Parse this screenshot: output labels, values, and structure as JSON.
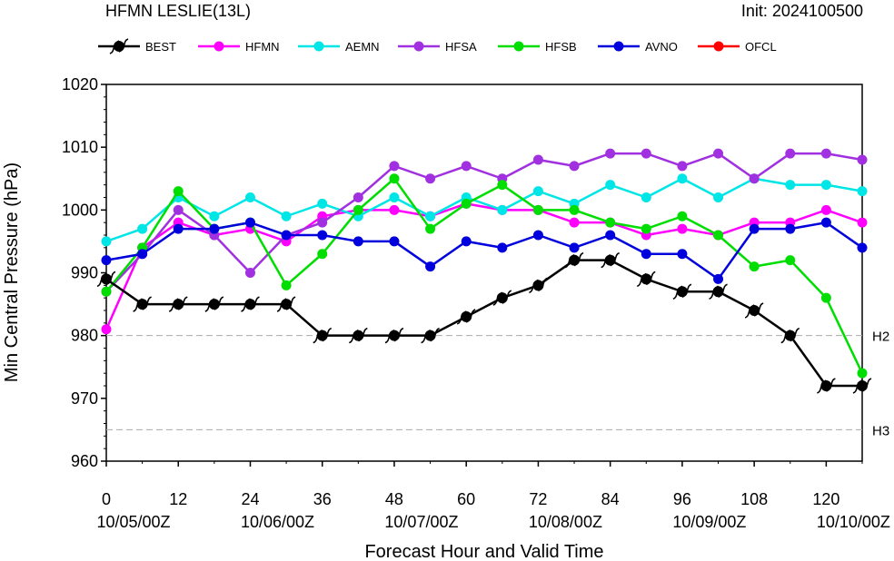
{
  "chart_data": {
    "type": "line",
    "title_left": "HFMN LESLIE(13L)",
    "title_right": "Init: 2024100500",
    "xlabel": "Forecast Hour and Valid Time",
    "ylabel": "Min Central Pressure (hPa)",
    "xlim": [
      0,
      126
    ],
    "ylim": [
      960,
      1020
    ],
    "x_ticks": [
      {
        "value": 0,
        "label": "0",
        "date": "10/05/00Z"
      },
      {
        "value": 12,
        "label": "12",
        "date": ""
      },
      {
        "value": 24,
        "label": "24",
        "date": "10/06/00Z"
      },
      {
        "value": 36,
        "label": "36",
        "date": ""
      },
      {
        "value": 48,
        "label": "48",
        "date": "10/07/00Z"
      },
      {
        "value": 60,
        "label": "60",
        "date": ""
      },
      {
        "value": 72,
        "label": "72",
        "date": "10/08/00Z"
      },
      {
        "value": 84,
        "label": "84",
        "date": ""
      },
      {
        "value": 96,
        "label": "96",
        "date": "10/09/00Z"
      },
      {
        "value": 108,
        "label": "108",
        "date": ""
      },
      {
        "value": 120,
        "label": "120",
        "date": "10/10/00Z"
      }
    ],
    "y_ticks": [
      960,
      970,
      980,
      990,
      1000,
      1010,
      1020
    ],
    "reference_lines": [
      {
        "label": "H2",
        "value": 980
      },
      {
        "label": "H3",
        "value": 965
      }
    ],
    "series": [
      {
        "name": "HFMN",
        "color": "#ff00ff",
        "x": [
          0,
          6,
          12,
          18,
          24,
          30,
          36,
          42,
          48,
          54,
          60,
          66,
          72,
          78,
          84,
          90,
          96,
          102,
          108,
          114,
          120,
          126
        ],
        "values": [
          981,
          994,
          998,
          996,
          997,
          995,
          999,
          1000,
          1000,
          999,
          1001,
          1000,
          1000,
          998,
          998,
          996,
          997,
          996,
          998,
          998,
          1000,
          998
        ]
      },
      {
        "name": "AEMN",
        "color": "#00e5e5",
        "x": [
          0,
          6,
          12,
          18,
          24,
          30,
          36,
          42,
          48,
          54,
          60,
          66,
          72,
          78,
          84,
          90,
          96,
          102,
          108,
          114,
          120,
          126
        ],
        "values": [
          995,
          997,
          1002,
          999,
          1002,
          999,
          1001,
          999,
          1002,
          999,
          1002,
          1000,
          1003,
          1001,
          1004,
          1002,
          1005,
          1002,
          1005,
          1004,
          1004,
          1003
        ]
      },
      {
        "name": "HFSA",
        "color": "#a030e0",
        "x": [
          0,
          6,
          12,
          18,
          24,
          30,
          36,
          42,
          48,
          54,
          60,
          66,
          72,
          78,
          84,
          90,
          96,
          102,
          108,
          114,
          120,
          126
        ],
        "values": [
          987,
          993,
          1000,
          996,
          990,
          996,
          998,
          1002,
          1007,
          1005,
          1007,
          1005,
          1008,
          1007,
          1009,
          1009,
          1007,
          1009,
          1005,
          1009,
          1009,
          1008
        ]
      },
      {
        "name": "HFSB",
        "color": "#00dd00",
        "x": [
          0,
          6,
          12,
          18,
          24,
          30,
          36,
          42,
          48,
          54,
          60,
          66,
          72,
          78,
          84,
          90,
          96,
          102,
          108,
          114,
          120,
          126
        ],
        "values": [
          987,
          994,
          1003,
          997,
          998,
          988,
          993,
          1000,
          1005,
          997,
          1001,
          1004,
          1000,
          1000,
          998,
          997,
          999,
          996,
          991,
          992,
          986,
          974
        ]
      },
      {
        "name": "AVNO",
        "color": "#0000dd",
        "x": [
          0,
          6,
          12,
          18,
          24,
          30,
          36,
          42,
          48,
          54,
          60,
          66,
          72,
          78,
          84,
          90,
          96,
          102,
          108,
          114,
          120,
          126
        ],
        "values": [
          992,
          993,
          997,
          997,
          998,
          996,
          996,
          995,
          995,
          991,
          995,
          994,
          996,
          994,
          996,
          993,
          993,
          989,
          997,
          997,
          998,
          994
        ]
      },
      {
        "name": "BEST",
        "color": "#000000",
        "marker": "hurricane",
        "x": [
          0,
          6,
          12,
          18,
          24,
          30,
          36,
          42,
          48,
          54,
          60,
          66,
          72,
          78,
          84,
          90,
          96,
          102,
          108,
          114,
          120,
          126
        ],
        "values": [
          989,
          985,
          985,
          985,
          985,
          985,
          980,
          980,
          980,
          980,
          983,
          986,
          988,
          992,
          992,
          989,
          987,
          987,
          984,
          980,
          972,
          972
        ]
      }
    ],
    "legend": [
      {
        "name": "BEST",
        "color": "#000000",
        "marker": "hurricane"
      },
      {
        "name": "HFMN",
        "color": "#ff00ff",
        "marker": "circle"
      },
      {
        "name": "AEMN",
        "color": "#00e5e5",
        "marker": "circle"
      },
      {
        "name": "HFSA",
        "color": "#a030e0",
        "marker": "circle"
      },
      {
        "name": "HFSB",
        "color": "#00dd00",
        "marker": "circle"
      },
      {
        "name": "AVNO",
        "color": "#0000dd",
        "marker": "circle"
      },
      {
        "name": "OFCL",
        "color": "#ff0000",
        "marker": "circle"
      }
    ],
    "legend_position": "top",
    "grid": false
  }
}
